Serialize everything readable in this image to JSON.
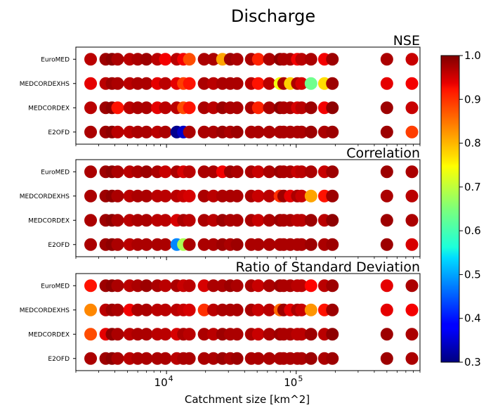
{
  "chart_data": {
    "type": "scatter",
    "title": "Discharge",
    "xlabel": "Catchment size [km^2]",
    "x_scale": "log",
    "xlim": [
      2000,
      900000
    ],
    "x_ticks": [
      {
        "value": 10000,
        "base": "10",
        "exp": "4"
      },
      {
        "value": 100000,
        "base": "10",
        "exp": "5"
      }
    ],
    "categories": [
      "EuroMED",
      "MEDCORDEXHS",
      "MEDCORDEX",
      "E2OFD"
    ],
    "catchment_sizes": [
      2600,
      3400,
      3800,
      4200,
      5200,
      6000,
      7000,
      8500,
      9800,
      12000,
      13500,
      15000,
      19500,
      23000,
      27000,
      31000,
      35000,
      45000,
      51000,
      62000,
      75000,
      80000,
      90000,
      102000,
      110000,
      130000,
      165000,
      190000,
      500000,
      780000
    ],
    "colorbar": {
      "colormap": "jet",
      "range": [
        0.3,
        1.0
      ],
      "ticks": [
        "1.0",
        "0.9",
        "0.8",
        "0.7",
        "0.6",
        "0.5",
        "0.4",
        "0.3"
      ]
    },
    "panels": [
      {
        "name": "NSE",
        "values": {
          "EuroMED": [
            0.96,
            0.98,
            0.99,
            0.97,
            0.96,
            0.97,
            0.98,
            0.96,
            0.92,
            0.96,
            0.92,
            0.86,
            0.97,
            0.97,
            0.8,
            0.98,
            0.97,
            0.97,
            0.89,
            0.97,
            0.99,
            0.97,
            0.97,
            0.92,
            0.96,
            0.97,
            0.92,
            0.98,
            0.97,
            0.95
          ],
          "MEDCORDEXHS": [
            0.93,
            0.96,
            0.98,
            0.97,
            0.96,
            0.97,
            0.97,
            0.93,
            0.96,
            0.93,
            0.87,
            0.9,
            0.97,
            0.96,
            0.97,
            0.97,
            0.97,
            0.96,
            0.9,
            0.96,
            0.73,
            0.97,
            0.77,
            0.97,
            0.94,
            0.64,
            0.76,
            0.98,
            0.93,
            0.92
          ],
          "MEDCORDEX": [
            0.96,
            0.98,
            0.99,
            0.9,
            0.96,
            0.97,
            0.97,
            0.93,
            0.96,
            0.96,
            0.86,
            0.9,
            0.97,
            0.96,
            0.98,
            0.97,
            0.97,
            0.97,
            0.89,
            0.97,
            0.99,
            0.97,
            0.97,
            0.94,
            0.96,
            0.98,
            0.92,
            0.99,
            0.98,
            0.95
          ],
          "E2OFD": [
            0.97,
            0.98,
            0.99,
            0.96,
            0.96,
            0.97,
            0.97,
            0.96,
            0.97,
            0.31,
            0.35,
            0.97,
            0.97,
            0.97,
            0.98,
            0.97,
            0.98,
            0.97,
            0.97,
            0.97,
            0.97,
            0.97,
            0.97,
            0.97,
            0.97,
            0.98,
            0.97,
            0.98,
            0.98,
            0.87
          ]
        }
      },
      {
        "name": "Correlation",
        "values": {
          "EuroMED": [
            0.97,
            0.98,
            0.99,
            0.97,
            0.96,
            0.97,
            0.98,
            0.97,
            0.95,
            0.97,
            0.94,
            0.96,
            0.97,
            0.97,
            0.92,
            0.98,
            0.97,
            0.97,
            0.95,
            0.97,
            0.98,
            0.97,
            0.97,
            0.95,
            0.96,
            0.97,
            0.95,
            0.98,
            0.98,
            0.97
          ],
          "MEDCORDEXHS": [
            0.97,
            0.98,
            0.99,
            0.97,
            0.96,
            0.97,
            0.97,
            0.96,
            0.96,
            0.96,
            0.95,
            0.94,
            0.97,
            0.96,
            0.97,
            0.97,
            0.97,
            0.97,
            0.95,
            0.96,
            0.88,
            0.98,
            0.93,
            0.97,
            0.95,
            0.8,
            0.9,
            0.98,
            0.97,
            0.96
          ],
          "MEDCORDEX": [
            0.97,
            0.98,
            0.99,
            0.97,
            0.96,
            0.97,
            0.97,
            0.96,
            0.96,
            0.94,
            0.97,
            0.96,
            0.97,
            0.96,
            0.98,
            0.97,
            0.97,
            0.97,
            0.95,
            0.97,
            0.98,
            0.97,
            0.97,
            0.96,
            0.96,
            0.98,
            0.96,
            0.99,
            0.98,
            0.97
          ],
          "E2OFD": [
            0.97,
            0.98,
            0.99,
            0.97,
            0.96,
            0.97,
            0.97,
            0.97,
            0.97,
            0.48,
            0.68,
            0.97,
            0.97,
            0.97,
            0.98,
            0.97,
            0.98,
            0.97,
            0.97,
            0.97,
            0.97,
            0.97,
            0.97,
            0.97,
            0.97,
            0.98,
            0.97,
            0.98,
            0.98,
            0.94
          ]
        }
      },
      {
        "name": "Ratio of Standard Deviation",
        "values": {
          "EuroMED": [
            0.9,
            0.98,
            0.99,
            0.97,
            0.96,
            0.97,
            0.98,
            0.97,
            0.96,
            0.97,
            0.95,
            0.96,
            0.94,
            0.97,
            0.97,
            0.98,
            0.97,
            0.97,
            0.95,
            0.97,
            0.98,
            0.97,
            0.97,
            0.96,
            0.96,
            0.91,
            0.96,
            0.98,
            0.93,
            0.97
          ],
          "MEDCORDEXHS": [
            0.82,
            0.96,
            0.98,
            0.97,
            0.92,
            0.97,
            0.97,
            0.96,
            0.96,
            0.96,
            0.95,
            0.94,
            0.88,
            0.96,
            0.97,
            0.97,
            0.97,
            0.97,
            0.95,
            0.96,
            0.84,
            0.98,
            0.93,
            0.97,
            0.95,
            0.81,
            0.9,
            0.98,
            0.93,
            0.92
          ],
          "MEDCORDEX": [
            0.86,
            0.93,
            0.99,
            0.97,
            0.96,
            0.97,
            0.97,
            0.96,
            0.96,
            0.94,
            0.97,
            0.96,
            0.97,
            0.96,
            0.98,
            0.97,
            0.97,
            0.97,
            0.95,
            0.97,
            0.98,
            0.97,
            0.97,
            0.96,
            0.96,
            0.98,
            0.96,
            0.99,
            0.98,
            0.97
          ],
          "E2OFD": [
            0.97,
            0.98,
            0.99,
            0.97,
            0.96,
            0.97,
            0.97,
            0.97,
            0.97,
            0.96,
            0.97,
            0.97,
            0.97,
            0.97,
            0.98,
            0.97,
            0.98,
            0.97,
            0.97,
            0.97,
            0.97,
            0.97,
            0.97,
            0.97,
            0.97,
            0.98,
            0.97,
            0.98,
            0.98,
            0.97
          ]
        }
      }
    ]
  }
}
